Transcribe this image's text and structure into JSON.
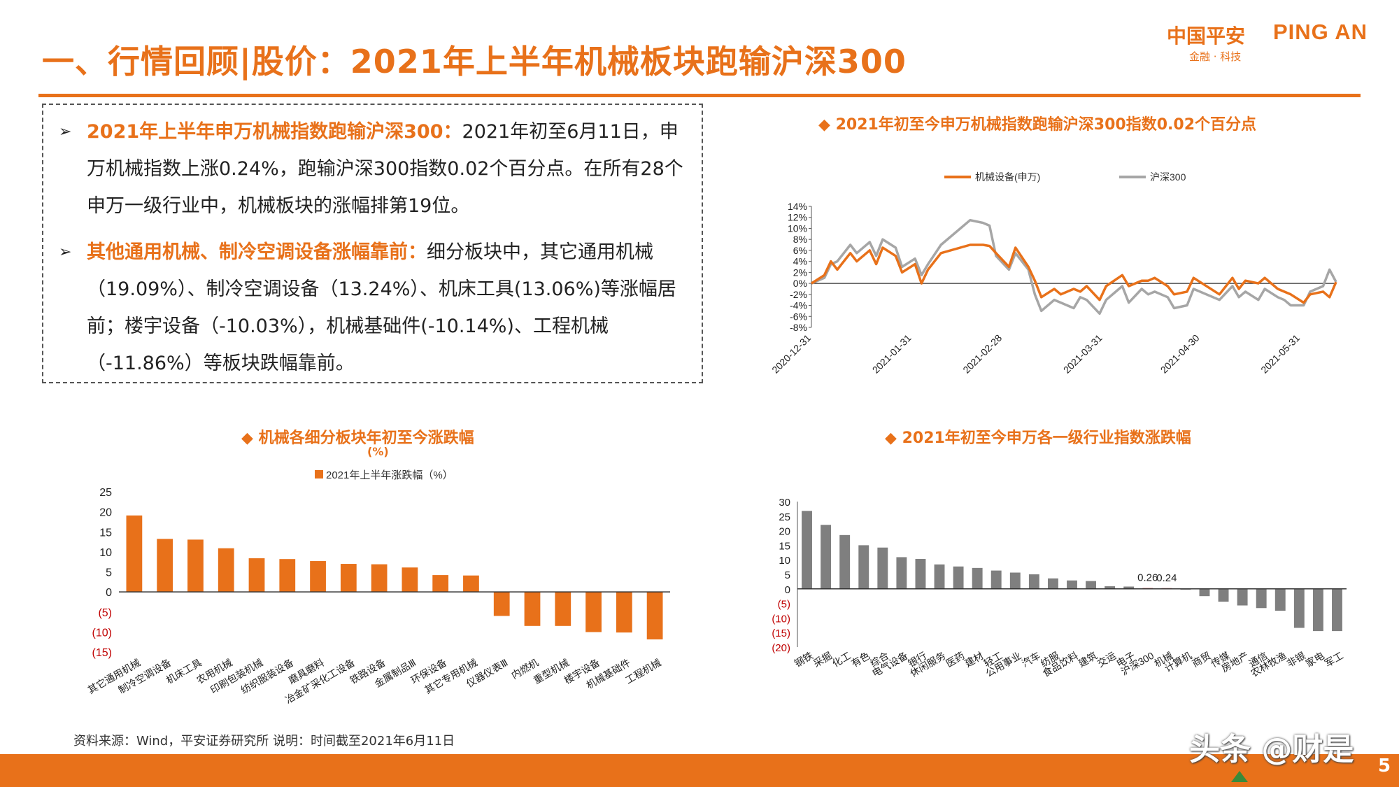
{
  "header": {
    "title": "一、行情回顾|股价：2021年上半年机械板块跑输沪深300",
    "logo_cn": "中国平安",
    "logo_en": "PING AN",
    "logo_tagline": "金融 · 科技"
  },
  "summary": {
    "bullets": [
      {
        "highlight": "2021年上半年申万机械指数跑输沪深300：",
        "text": "2021年初至6月11日，申万机械指数上涨0.24%，跑输沪深300指数0.02个百分点。在所有28个申万一级行业中，机械板块的涨幅排第19位。"
      },
      {
        "highlight": "其他通用机械、制冷空调设备涨幅靠前：",
        "text": "细分板块中，其它通用机械（19.09%）、制冷空调设备（13.24%）、机床工具(13.06%)等涨幅居前；楼宇设备（-10.03%），机械基础件(-10.14%)、工程机械（-11.86%）等板块跌幅靠前。"
      }
    ]
  },
  "colors": {
    "orange": "#e8711a",
    "gray": "#a6a6a6",
    "dark_gray": "#7f7f7f",
    "red": "#c00000",
    "green": "#3a8a3a"
  },
  "footer": {
    "source": "资料来源：Wind，平安证券研究所 说明：时间截至2021年6月11日",
    "watermark": "头条 @财是",
    "page": "5"
  },
  "chart_data": [
    {
      "type": "line",
      "title": "◆ 2021年初至今申万机械指数跑输沪深300指数0.02个百分点",
      "xlabel": "",
      "ylabel": "",
      "ylim": [
        -8,
        14
      ],
      "yticks": [
        "14%",
        "12%",
        "10%",
        "8%",
        "6%",
        "4%",
        "2%",
        "0%",
        "-2%",
        "-4%",
        "-6%",
        "-8%"
      ],
      "xticks": [
        "2020-12-31",
        "2021-01-31",
        "2021-02-28",
        "2021-03-31",
        "2021-04-30",
        "2021-05-31"
      ],
      "legend_position": "top",
      "x": [
        "2020-12-31",
        "2021-01-04",
        "2021-01-06",
        "2021-01-08",
        "2021-01-12",
        "2021-01-14",
        "2021-01-18",
        "2021-01-20",
        "2021-01-22",
        "2021-01-26",
        "2021-01-28",
        "2021-02-01",
        "2021-02-03",
        "2021-02-05",
        "2021-02-09",
        "2021-02-18",
        "2021-02-22",
        "2021-02-24",
        "2021-02-26",
        "2021-03-02",
        "2021-03-04",
        "2021-03-08",
        "2021-03-10",
        "2021-03-12",
        "2021-03-16",
        "2021-03-18",
        "2021-03-22",
        "2021-03-24",
        "2021-03-26",
        "2021-03-30",
        "2021-04-01",
        "2021-04-06",
        "2021-04-08",
        "2021-04-12",
        "2021-04-14",
        "2021-04-16",
        "2021-04-20",
        "2021-04-22",
        "2021-04-26",
        "2021-04-28",
        "2021-05-06",
        "2021-05-10",
        "2021-05-12",
        "2021-05-14",
        "2021-05-18",
        "2021-05-20",
        "2021-05-24",
        "2021-05-26",
        "2021-05-28",
        "2021-06-01",
        "2021-06-03",
        "2021-06-07",
        "2021-06-09",
        "2021-06-11"
      ],
      "series": [
        {
          "name": "机械设备(申万)",
          "values": [
            0,
            1.5,
            4.0,
            2.5,
            5.5,
            4.0,
            6.0,
            3.5,
            6.5,
            5.0,
            2.0,
            3.5,
            0,
            2.5,
            5.5,
            7.0,
            7.0,
            6.8,
            5.5,
            3.0,
            6.5,
            3.0,
            0.5,
            -2.5,
            -1.0,
            -2.0,
            -1.0,
            -1.5,
            -0.5,
            -3.0,
            -0.5,
            1.5,
            -0.5,
            0.5,
            0.5,
            1.0,
            -0.5,
            -2.0,
            -1.5,
            1.0,
            -2.0,
            1.0,
            -1.0,
            0.5,
            0,
            1.0,
            -1.0,
            -1.5,
            -2.0,
            -3.5,
            -2.0,
            -1.5,
            -2.5,
            0.24
          ]
        },
        {
          "name": "沪深300",
          "values": [
            0,
            1.0,
            3.5,
            4.0,
            7.0,
            5.5,
            7.5,
            5.0,
            8.0,
            6.5,
            3.0,
            4.5,
            1.5,
            3.5,
            7.0,
            11.5,
            11.0,
            10.5,
            5.0,
            2.5,
            5.5,
            2.5,
            -2.0,
            -5.0,
            -3.0,
            -3.5,
            -4.5,
            -2.5,
            -3.0,
            -5.5,
            -3.0,
            -0.5,
            -3.5,
            -1.0,
            -2.0,
            -1.5,
            -2.5,
            -4.5,
            -4.0,
            -1.0,
            -3.0,
            -0.5,
            -2.5,
            -1.5,
            -3.0,
            -1.0,
            -2.5,
            -3.0,
            -4.0,
            -4.0,
            -1.5,
            -0.5,
            2.5,
            0.26
          ]
        }
      ]
    },
    {
      "type": "bar",
      "title": "◆ 机械各细分板块年初至今涨跌幅",
      "title_cont": "(%)",
      "legend_position": "top",
      "ylim": [
        -15,
        25
      ],
      "yticks": [
        "25",
        "20",
        "15",
        "10",
        "5",
        "0",
        "(5)",
        "(10)",
        "(15)"
      ],
      "categories": [
        "其它通用机械",
        "制冷空调设备",
        "机床工具",
        "农用机械",
        "印刷包装机械",
        "纺织服装设备",
        "磨具磨料",
        "冶金矿采化工设备",
        "铁路设备",
        "金属制品Ⅲ",
        "环保设备",
        "其它专用机械",
        "仪器仪表Ⅲ",
        "内燃机",
        "重型机械",
        "楼宇设备",
        "机械基础件",
        "工程机械"
      ],
      "series": [
        {
          "name": "2021年上半年涨跌幅（%）",
          "values": [
            19.09,
            13.24,
            13.06,
            10.9,
            8.4,
            8.2,
            7.7,
            7.0,
            6.9,
            6.1,
            4.2,
            4.1,
            -6.0,
            -8.5,
            -8.5,
            -10.03,
            -10.14,
            -11.86
          ]
        }
      ]
    },
    {
      "type": "bar",
      "title": "◆ 2021年初至今申万各一级行业指数涨跌幅",
      "ylim": [
        -20,
        30
      ],
      "yticks": [
        "30",
        "25",
        "20",
        "15",
        "10",
        "5",
        "0",
        "(5)",
        "(10)",
        "(15)",
        "(20)"
      ],
      "data_labels": {
        "沪深300": "0.26",
        "机械": "0.24"
      },
      "categories": [
        "钢铁",
        "采掘",
        "化工",
        "有色",
        "综合",
        "电气设备",
        "银行",
        "休闲服务",
        "医药",
        "建材",
        "轻工",
        "公用事业",
        "汽车",
        "纺服",
        "食品饮料",
        "建筑",
        "交运",
        "电子",
        "沪深300",
        "机械",
        "计算机",
        "商贸",
        "传媒",
        "房地产",
        "通信",
        "农林牧渔",
        "非银",
        "家电",
        "军工"
      ],
      "series": [
        {
          "name": "",
          "values": [
            26.8,
            22.0,
            18.5,
            15.0,
            14.2,
            10.9,
            10.3,
            8.4,
            7.7,
            7.2,
            6.3,
            5.6,
            5.0,
            3.6,
            2.9,
            2.7,
            0.9,
            0.8,
            0.26,
            0.24,
            0.1,
            -2.5,
            -4.4,
            -5.7,
            -6.6,
            -7.5,
            -13.4,
            -14.5,
            -14.5
          ]
        }
      ]
    }
  ]
}
